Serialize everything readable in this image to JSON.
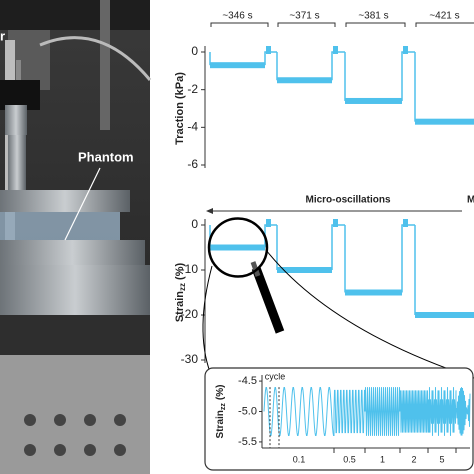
{
  "photo": {
    "labels": [
      "r",
      "Phantom"
    ]
  },
  "chart_data": [
    {
      "type": "step",
      "y_label": "Traction (kPa)",
      "categories": [
        "~346 s",
        "~371 s",
        "~381 s",
        "~421 s"
      ],
      "values": [
        -0.7,
        -1.5,
        -2.6,
        -3.7
      ],
      "color": "#4fc1ec",
      "ylim": [
        -6,
        0
      ],
      "yticks": [
        0,
        -2,
        -4,
        -6
      ]
    },
    {
      "type": "step",
      "y_label": "Strain",
      "y_label_sub": "zz",
      "y_label_unit": "(%)",
      "annotation": "Micro-oscillations",
      "annotation_cut": "M",
      "values": [
        -5,
        -10,
        -15,
        -20
      ],
      "color": "#4fc1ec",
      "ylim": [
        -30,
        0
      ],
      "yticks": [
        0,
        -10,
        -20,
        -30
      ]
    },
    {
      "type": "oscillation",
      "y_label": "Strain",
      "y_label_sub": "zz",
      "y_label_unit": "(%)",
      "annotation": "cycle",
      "categories": [
        "0.1",
        "0.5",
        "1",
        "2",
        "5"
      ],
      "oscillation_range": [
        -5.4,
        -4.6
      ],
      "color": "#4fc1ec",
      "ylim": [
        -5.6,
        -4.4
      ],
      "yticks": [
        -4.5,
        {
          "value": -5,
          "label": "-5.0"
        },
        -5.5
      ]
    }
  ]
}
